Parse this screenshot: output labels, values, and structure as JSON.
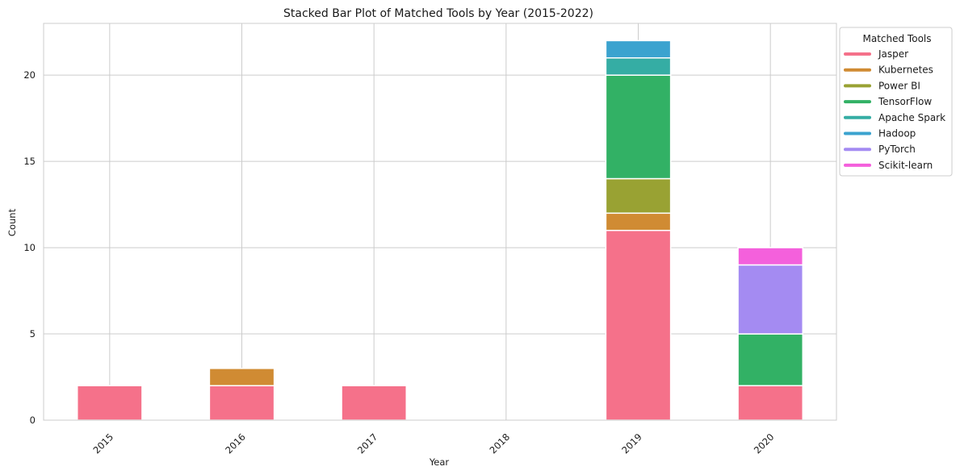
{
  "chart_data": {
    "type": "bar",
    "stacked": true,
    "title": "Stacked Bar Plot of Matched Tools by Year (2015-2022)",
    "xlabel": "Year",
    "ylabel": "Count",
    "categories": [
      "2015",
      "2016",
      "2017",
      "2018",
      "2019",
      "2020"
    ],
    "ylim": [
      0,
      23
    ],
    "yticks": [
      0,
      5,
      10,
      15,
      20
    ],
    "grid": true,
    "legend": {
      "title": "Matched Tools",
      "placement": "outside-upper-right"
    },
    "series": [
      {
        "name": "Jasper",
        "color": "#f5718a",
        "values": [
          2,
          2,
          2,
          0,
          11,
          2
        ]
      },
      {
        "name": "Kubernetes",
        "color": "#d08b33",
        "values": [
          0,
          1,
          0,
          0,
          1,
          0
        ]
      },
      {
        "name": "Power BI",
        "color": "#99a233",
        "values": [
          0,
          0,
          0,
          0,
          2,
          0
        ]
      },
      {
        "name": "TensorFlow",
        "color": "#32b165",
        "values": [
          0,
          0,
          0,
          0,
          6,
          3
        ]
      },
      {
        "name": "Apache Spark",
        "color": "#35ada4",
        "values": [
          0,
          0,
          0,
          0,
          1,
          0
        ]
      },
      {
        "name": "Hadoop",
        "color": "#3ba3cf",
        "values": [
          0,
          0,
          0,
          0,
          1,
          0
        ]
      },
      {
        "name": "PyTorch",
        "color": "#a48bf2",
        "values": [
          0,
          0,
          0,
          0,
          0,
          4
        ]
      },
      {
        "name": "Scikit-learn",
        "color": "#f460dc",
        "values": [
          0,
          0,
          0,
          0,
          0,
          1
        ]
      }
    ]
  }
}
